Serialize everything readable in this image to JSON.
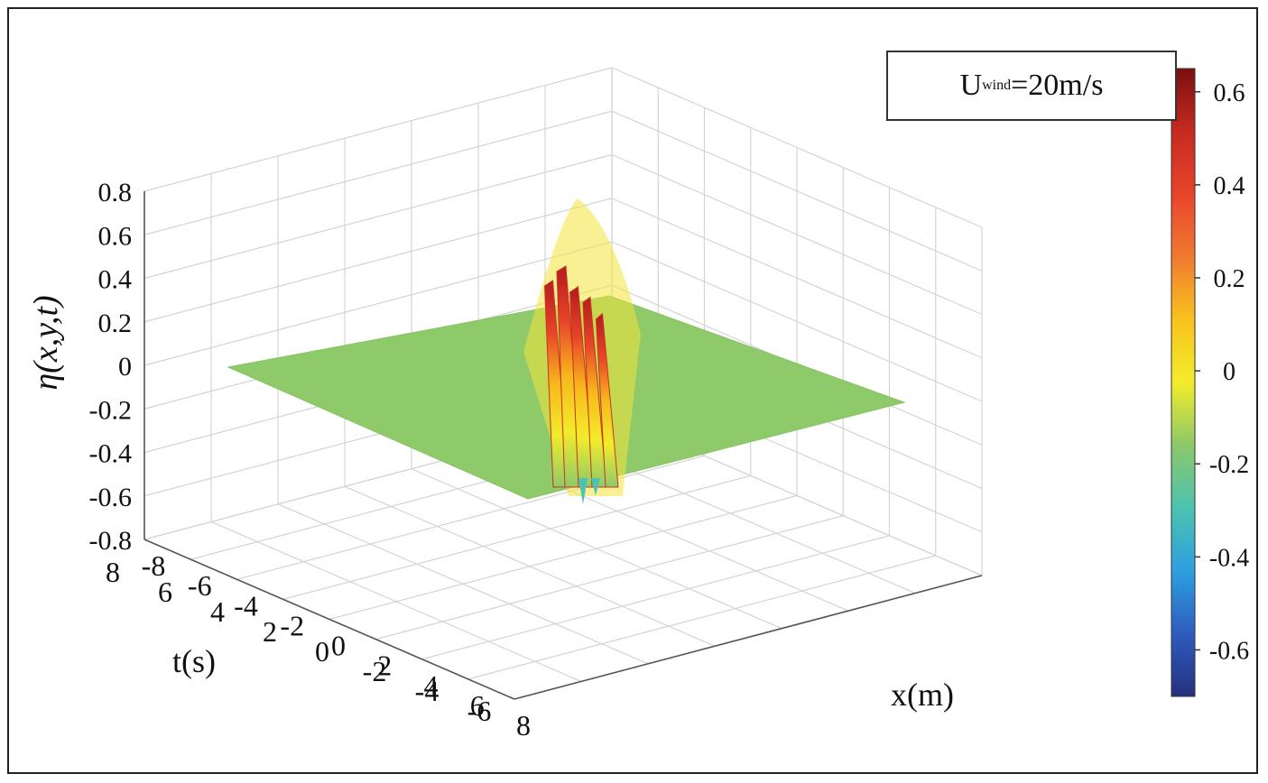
{
  "chart_data": {
    "type": "surface3d",
    "title": "",
    "xlabel": "x(m)",
    "ylabel": "t(s)",
    "zlabel": "η(x,y,t)",
    "xlim": [
      -8,
      8
    ],
    "ylim": [
      -6,
      8
    ],
    "zlim": [
      -0.8,
      0.8
    ],
    "x_ticks": [
      "-8",
      "-6",
      "-4",
      "-2",
      "0",
      "2",
      "4",
      "6",
      "8"
    ],
    "t_ticks": [
      "8",
      "6",
      "4",
      "2",
      "0",
      "-2",
      "-4",
      "-6"
    ],
    "z_ticks": [
      "0.8",
      "0.6",
      "0.4",
      "0.2",
      "0",
      "-0.2",
      "-0.4",
      "-0.6",
      "-0.8"
    ],
    "grid": true,
    "surface": {
      "baseline": 0,
      "peak_max": 0.65,
      "trough_min": -0.2,
      "peaks": [
        {
          "x": 0.0,
          "t": 0.0,
          "eta": 0.65
        },
        {
          "x": -0.3,
          "t": 0.0,
          "eta": 0.58
        },
        {
          "x": 0.3,
          "t": 0.0,
          "eta": 0.5
        },
        {
          "x": 0.6,
          "t": 0.0,
          "eta": 0.42
        }
      ]
    },
    "annotation": {
      "main": "U",
      "sub": "wind",
      "rest": "=20m/s"
    },
    "colorbar": {
      "range": [
        -0.7,
        0.65
      ],
      "ticks": [
        "0.6",
        "0.4",
        "0.2",
        "0",
        "-0.2",
        "-0.4",
        "-0.6"
      ],
      "colors": [
        "#7a1010",
        "#c62a20",
        "#e8442a",
        "#f07a30",
        "#f9c21e",
        "#f2ec2a",
        "#8cc86a",
        "#4cc3b0",
        "#2da0e0",
        "#2e5cbf",
        "#25307e"
      ]
    }
  }
}
